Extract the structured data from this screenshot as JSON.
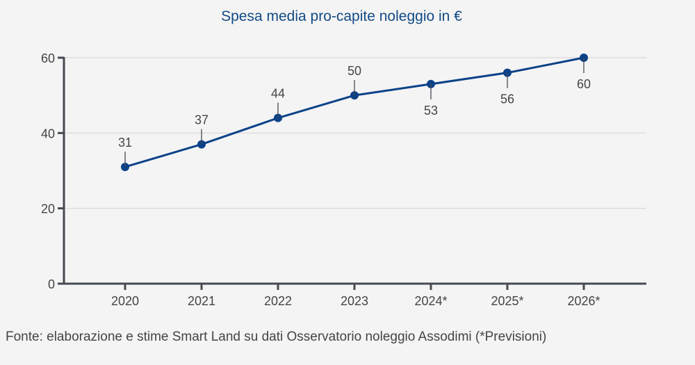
{
  "chart_data": {
    "type": "line",
    "title": "Spesa media pro-capite noleggio in €",
    "xlabel": "",
    "ylabel": "",
    "categories": [
      "2020",
      "2021",
      "2022",
      "2023",
      "2024*",
      "2025*",
      "2026*"
    ],
    "series": [
      {
        "name": "Spesa media pro-capite noleggio",
        "values": [
          31,
          37,
          44,
          50,
          53,
          56,
          60
        ],
        "color": "#0b4288"
      }
    ],
    "data_labels": [
      "31",
      "37",
      "44",
      "50",
      "53",
      "56",
      "60"
    ],
    "data_label_position": [
      "above",
      "above",
      "above",
      "above",
      "below",
      "below",
      "below"
    ],
    "ylim": [
      0,
      60
    ],
    "yticks": [
      0,
      20,
      40,
      60
    ],
    "ytick_labels": [
      "0",
      "20",
      "40",
      "60"
    ],
    "grid": true,
    "legend": "none"
  },
  "footer": {
    "source": "Fonte: elaborazione e stime Smart Land su dati Osservatorio noleggio Assodimi (*Previsioni)"
  },
  "colors": {
    "line": "#0b4288",
    "title": "#124a85",
    "axis": "#454a52",
    "grid": "#d6d6d6",
    "text": "#444444"
  }
}
